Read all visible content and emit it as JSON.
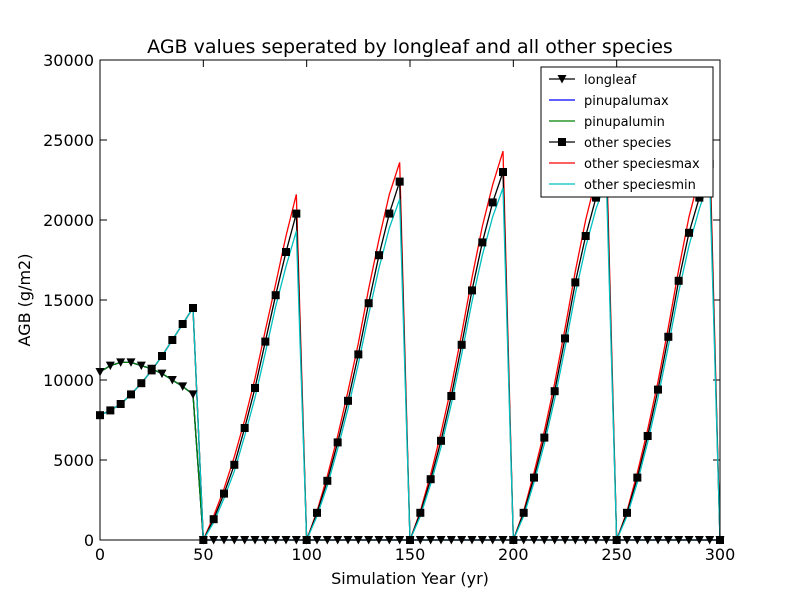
{
  "chart_data": {
    "type": "line",
    "title": "AGB values seperated by longleaf and all other species",
    "xlabel": "Simulation Year (yr)",
    "ylabel": "AGB (g/m2)",
    "xlim": [
      0,
      300
    ],
    "ylim": [
      0,
      30000
    ],
    "xticks": [
      "0",
      "50",
      "100",
      "150",
      "200",
      "250",
      "300"
    ],
    "yticks": [
      "0",
      "5000",
      "10000",
      "15000",
      "20000",
      "25000",
      "30000"
    ],
    "legend_position": "top-right",
    "grid": false,
    "series": [
      {
        "name": "longleaf",
        "color": "#000000",
        "marker": "triangle-down",
        "x": [
          0,
          5,
          10,
          15,
          20,
          25,
          30,
          35,
          40,
          45,
          50,
          55,
          60,
          65,
          70,
          75,
          80,
          85,
          90,
          95,
          100,
          105,
          110,
          115,
          120,
          125,
          130,
          135,
          140,
          145,
          150,
          155,
          160,
          165,
          170,
          175,
          180,
          185,
          190,
          195,
          200,
          205,
          210,
          215,
          220,
          225,
          230,
          235,
          240,
          245,
          250,
          255,
          260,
          265,
          270,
          275,
          280,
          285,
          290,
          295,
          300
        ],
        "y": [
          10500,
          10900,
          11100,
          11100,
          10900,
          10700,
          10400,
          10000,
          9600,
          9100,
          0,
          0,
          0,
          0,
          0,
          0,
          0,
          0,
          0,
          0,
          0,
          0,
          0,
          0,
          0,
          0,
          0,
          0,
          0,
          0,
          0,
          0,
          0,
          0,
          0,
          0,
          0,
          0,
          0,
          0,
          0,
          0,
          0,
          0,
          0,
          0,
          0,
          0,
          0,
          0,
          0,
          0,
          0,
          0,
          0,
          0,
          0,
          0,
          0,
          0,
          0
        ]
      },
      {
        "name": "pinupalumax",
        "color": "#0000ff",
        "marker": "none",
        "x": [
          0,
          5,
          10,
          15,
          20,
          25,
          30,
          35,
          40,
          45,
          50,
          55,
          300
        ],
        "y": [
          10500,
          10900,
          11100,
          11100,
          10900,
          10700,
          10400,
          10000,
          9600,
          9100,
          0,
          0,
          0
        ]
      },
      {
        "name": "pinupalumin",
        "color": "#008000",
        "marker": "none",
        "x": [
          0,
          5,
          10,
          15,
          20,
          25,
          30,
          35,
          40,
          45,
          50,
          55,
          300
        ],
        "y": [
          10500,
          10900,
          11100,
          11100,
          10900,
          10700,
          10400,
          10000,
          9600,
          9100,
          0,
          0,
          0
        ]
      },
      {
        "name": "other species",
        "color": "#000000",
        "marker": "square",
        "x": [
          0,
          5,
          10,
          15,
          20,
          25,
          30,
          35,
          40,
          45,
          50,
          55,
          60,
          65,
          70,
          75,
          80,
          85,
          90,
          95,
          100,
          105,
          110,
          115,
          120,
          125,
          130,
          135,
          140,
          145,
          150,
          155,
          160,
          165,
          170,
          175,
          180,
          185,
          190,
          195,
          200,
          205,
          210,
          215,
          220,
          225,
          230,
          235,
          240,
          245,
          250,
          255,
          260,
          265,
          270,
          275,
          280,
          285,
          290,
          295,
          300
        ],
        "y": [
          7800,
          8100,
          8500,
          9100,
          9800,
          10600,
          11500,
          12500,
          13500,
          14500,
          0,
          1300,
          2900,
          4700,
          7000,
          9500,
          12400,
          15300,
          18000,
          20400,
          0,
          1700,
          3700,
          6100,
          8700,
          11600,
          14800,
          17800,
          20400,
          22400,
          0,
          1700,
          3800,
          6200,
          9000,
          12200,
          15600,
          18600,
          21100,
          23000,
          0,
          1700,
          3900,
          6400,
          9300,
          12600,
          16100,
          19000,
          21400,
          23400,
          0,
          1700,
          3900,
          6500,
          9400,
          12700,
          16200,
          19200,
          21400,
          23500,
          0
        ]
      },
      {
        "name": "other speciesmax",
        "color": "#ff0000",
        "marker": "none",
        "x": [
          0,
          5,
          10,
          15,
          20,
          25,
          30,
          35,
          40,
          45,
          50,
          55,
          60,
          65,
          70,
          75,
          80,
          85,
          90,
          95,
          100,
          105,
          110,
          115,
          120,
          125,
          130,
          135,
          140,
          145,
          150,
          155,
          160,
          165,
          170,
          175,
          180,
          185,
          190,
          195,
          200,
          205,
          210,
          215,
          220,
          225,
          230,
          235,
          240,
          245,
          250,
          255,
          260,
          265,
          270,
          275,
          280,
          285,
          290,
          295,
          300
        ],
        "y": [
          7800,
          8100,
          8500,
          9100,
          9800,
          10600,
          11500,
          12500,
          13500,
          14500,
          0,
          1500,
          3200,
          5200,
          7500,
          10100,
          13100,
          16000,
          19000,
          21600,
          0,
          1800,
          4000,
          6500,
          9300,
          12300,
          15700,
          18800,
          21600,
          23600,
          0,
          1800,
          4100,
          6700,
          9600,
          12900,
          16400,
          19600,
          22200,
          24300,
          0,
          1800,
          4200,
          6800,
          9800,
          13200,
          16800,
          20000,
          22600,
          24600,
          0,
          1800,
          4200,
          6900,
          9900,
          13300,
          16900,
          20200,
          22700,
          24700,
          0
        ]
      },
      {
        "name": "other speciesmin",
        "color": "#00bfbf",
        "marker": "none",
        "x": [
          0,
          5,
          10,
          15,
          20,
          25,
          30,
          35,
          40,
          45,
          50,
          55,
          60,
          65,
          70,
          75,
          80,
          85,
          90,
          95,
          100,
          105,
          110,
          115,
          120,
          125,
          130,
          135,
          140,
          145,
          150,
          155,
          160,
          165,
          170,
          175,
          180,
          185,
          190,
          195,
          200,
          205,
          210,
          215,
          220,
          225,
          230,
          235,
          240,
          245,
          250,
          255,
          260,
          265,
          270,
          275,
          280,
          285,
          290,
          295,
          300
        ],
        "y": [
          7800,
          8100,
          8500,
          9100,
          9800,
          10600,
          11500,
          12500,
          13500,
          14500,
          0,
          1100,
          2600,
          4300,
          6500,
          8900,
          11700,
          14600,
          17100,
          19300,
          0,
          1500,
          3400,
          5700,
          8200,
          11000,
          14100,
          17000,
          19500,
          21300,
          0,
          1500,
          3500,
          5800,
          8500,
          11600,
          14900,
          17800,
          20200,
          22000,
          0,
          1500,
          3600,
          6000,
          8800,
          12000,
          15400,
          18300,
          20700,
          22500,
          0,
          1500,
          3600,
          6100,
          8900,
          12100,
          15500,
          18400,
          20700,
          22600,
          0
        ]
      }
    ]
  }
}
